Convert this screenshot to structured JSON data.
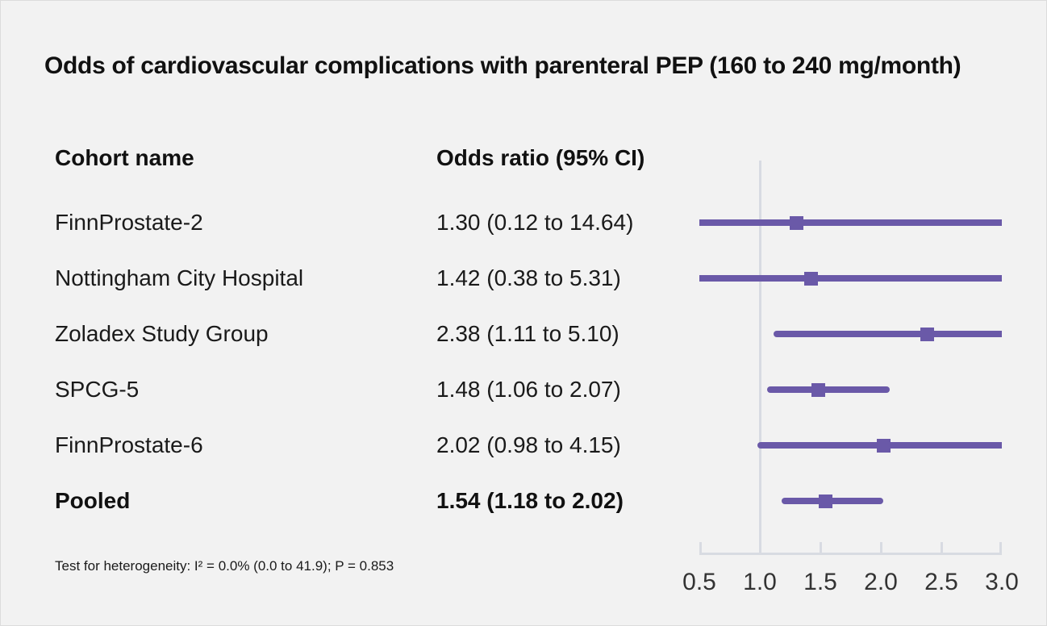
{
  "title": "Odds of cardiovascular complications with parenteral PEP (160 to 240 mg/month)",
  "columns": {
    "cohort": "Cohort name",
    "odds_ratio": "Odds ratio (95% CI)"
  },
  "footnote": "Test for heterogeneity: I² = 0.0% (0.0 to 41.9); P = 0.853",
  "chart_data": {
    "type": "forest",
    "title": "Odds of cardiovascular complications with parenteral PEP (160 to 240 mg/month)",
    "xlabel": "Odds ratio",
    "axis": {
      "min": 0.5,
      "max": 3.0,
      "reference_line": 1.0,
      "ticks": [
        0.5,
        1.0,
        1.5,
        2.0,
        2.5,
        3.0
      ],
      "tick_labels": [
        "0.5",
        "1.0",
        "1.5",
        "2.0",
        "2.5",
        "3.0"
      ]
    },
    "rows": [
      {
        "label": "FinnProstate-2",
        "or_text": "1.30 (0.12 to 14.64)",
        "or": 1.3,
        "lo": 0.12,
        "hi": 14.64,
        "bold": false
      },
      {
        "label": "Nottingham City Hospital",
        "or_text": "1.42 (0.38 to 5.31)",
        "or": 1.42,
        "lo": 0.38,
        "hi": 5.31,
        "bold": false
      },
      {
        "label": "Zoladex Study Group",
        "or_text": "2.38 (1.11 to 5.10)",
        "or": 2.38,
        "lo": 1.11,
        "hi": 5.1,
        "bold": false
      },
      {
        "label": "SPCG-5",
        "or_text": "1.48 (1.06 to 2.07)",
        "or": 1.48,
        "lo": 1.06,
        "hi": 2.07,
        "bold": false
      },
      {
        "label": "FinnProstate-6",
        "or_text": "2.02 (0.98 to 4.15)",
        "or": 2.02,
        "lo": 0.98,
        "hi": 4.15,
        "bold": false
      },
      {
        "label": "Pooled",
        "or_text": "1.54 (1.18 to 2.02)",
        "or": 1.54,
        "lo": 1.18,
        "hi": 2.02,
        "bold": true
      }
    ],
    "colors": {
      "marker": "#6a59a8",
      "ci_line": "#6a59a8",
      "reference_line": "#d8dbe2",
      "axis_line": "#d8dbe2",
      "tick_label": "#333333",
      "background": "#f2f2f2"
    },
    "legend": null,
    "grid": false
  }
}
